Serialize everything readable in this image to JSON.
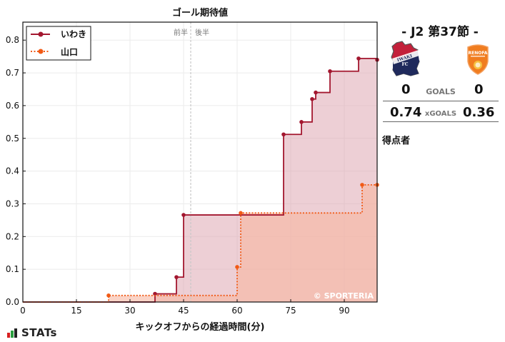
{
  "chart_data": {
    "type": "line",
    "subtype": "step-cumulative",
    "title": "ゴール期待値",
    "xlabel": "キックオフからの経過時間(分)",
    "ylabel": "",
    "xlim": [
      0,
      99.2
    ],
    "ylim": [
      0,
      0.855
    ],
    "xticks": [
      0,
      15,
      30,
      45,
      60,
      75,
      90
    ],
    "yticks": [
      0.0,
      0.1,
      0.2,
      0.3,
      0.4,
      0.5,
      0.6,
      0.7,
      0.8
    ],
    "grid": true,
    "legend_position": "upper-left",
    "half_divider": {
      "x": 47,
      "left_label": "前半",
      "right_label": "後半"
    },
    "watermark": "© SPORTERIA",
    "series": [
      {
        "name": "いわき",
        "color": "#a3172f",
        "fill": "#dfa8b2",
        "style": "solid",
        "x": [
          37,
          43,
          45,
          73,
          78,
          81,
          82,
          86,
          94
        ],
        "y": [
          0.025,
          0.076,
          0.266,
          0.512,
          0.55,
          0.62,
          0.64,
          0.705,
          0.744
        ],
        "final": 0.74
      },
      {
        "name": "山口",
        "color": "#f15a16",
        "fill": "#f7b5a0",
        "style": "dotted",
        "x": [
          24,
          60,
          61,
          95
        ],
        "y": [
          0.02,
          0.107,
          0.272,
          0.358
        ],
        "final": 0.36
      }
    ]
  },
  "side_panel": {
    "round_title": "-  J2 第37節  -",
    "home_team": {
      "name": "いわき",
      "logo_text_1": "IWAKI",
      "logo_text_2": "FC",
      "goals": "0",
      "xgoals": "0.74"
    },
    "away_team": {
      "name": "山口",
      "logo_text": "RENOFA",
      "goals": "0",
      "xgoals": "0.36"
    },
    "goals_label": "GOALS",
    "xgoals_label": "xGOALS",
    "scorers_label": "得点者"
  },
  "footer": {
    "brand": "STATs"
  }
}
